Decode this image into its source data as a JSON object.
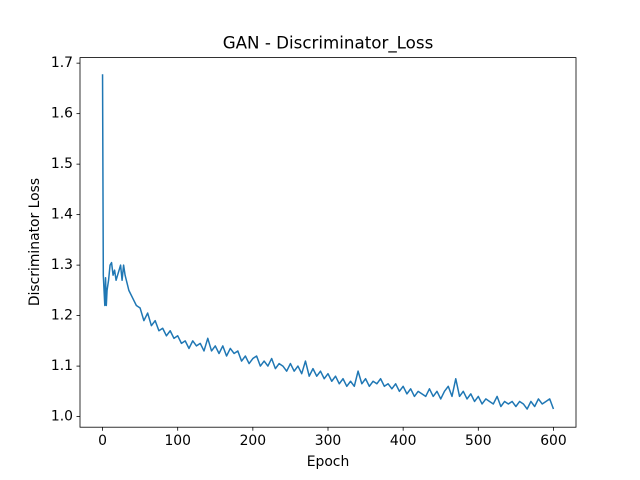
{
  "chart_data": {
    "type": "line",
    "title": "GAN - Discriminator_Loss",
    "x_label": "Epoch",
    "y_label": "Discriminator Loss",
    "series": [
      {
        "name": "Discriminator Loss",
        "color": "#1f77b4",
        "x": [
          0,
          1,
          2,
          3,
          4,
          5,
          6,
          8,
          10,
          12,
          14,
          16,
          18,
          20,
          22,
          24,
          26,
          28,
          30,
          35,
          40,
          45,
          50,
          55,
          60,
          65,
          70,
          75,
          80,
          85,
          90,
          95,
          100,
          105,
          110,
          115,
          120,
          125,
          130,
          135,
          140,
          145,
          150,
          155,
          160,
          165,
          170,
          175,
          180,
          185,
          190,
          195,
          200,
          205,
          210,
          215,
          220,
          225,
          230,
          235,
          240,
          245,
          250,
          255,
          260,
          265,
          270,
          275,
          280,
          285,
          290,
          295,
          300,
          305,
          310,
          315,
          320,
          325,
          330,
          335,
          340,
          345,
          350,
          355,
          360,
          365,
          370,
          375,
          380,
          385,
          390,
          395,
          400,
          405,
          410,
          415,
          420,
          425,
          430,
          435,
          440,
          445,
          450,
          455,
          460,
          465,
          470,
          475,
          480,
          485,
          490,
          495,
          500,
          505,
          510,
          515,
          520,
          525,
          530,
          535,
          540,
          545,
          550,
          555,
          560,
          565,
          570,
          575,
          580,
          585,
          590,
          595,
          600
        ],
        "values": [
          1.678,
          1.28,
          1.25,
          1.22,
          1.275,
          1.22,
          1.25,
          1.27,
          1.3,
          1.305,
          1.28,
          1.29,
          1.27,
          1.28,
          1.29,
          1.3,
          1.27,
          1.3,
          1.28,
          1.25,
          1.235,
          1.22,
          1.215,
          1.19,
          1.205,
          1.18,
          1.19,
          1.17,
          1.175,
          1.16,
          1.17,
          1.155,
          1.16,
          1.145,
          1.15,
          1.135,
          1.15,
          1.14,
          1.145,
          1.13,
          1.155,
          1.13,
          1.14,
          1.125,
          1.14,
          1.12,
          1.135,
          1.125,
          1.13,
          1.11,
          1.12,
          1.105,
          1.115,
          1.12,
          1.1,
          1.11,
          1.1,
          1.115,
          1.095,
          1.105,
          1.1,
          1.09,
          1.105,
          1.09,
          1.1,
          1.085,
          1.11,
          1.08,
          1.095,
          1.08,
          1.09,
          1.075,
          1.085,
          1.07,
          1.08,
          1.065,
          1.075,
          1.06,
          1.07,
          1.06,
          1.09,
          1.065,
          1.075,
          1.06,
          1.07,
          1.065,
          1.075,
          1.06,
          1.065,
          1.055,
          1.065,
          1.05,
          1.06,
          1.045,
          1.055,
          1.04,
          1.05,
          1.045,
          1.04,
          1.055,
          1.04,
          1.05,
          1.035,
          1.05,
          1.06,
          1.04,
          1.075,
          1.04,
          1.05,
          1.035,
          1.045,
          1.03,
          1.04,
          1.025,
          1.035,
          1.03,
          1.025,
          1.04,
          1.02,
          1.03,
          1.025,
          1.03,
          1.02,
          1.03,
          1.025,
          1.015,
          1.03,
          1.02,
          1.035,
          1.025,
          1.03,
          1.035,
          1.015
        ]
      }
    ],
    "xlim": [
      -30,
      630
    ],
    "ylim": [
      0.979,
      1.711
    ],
    "xticks": [
      0,
      100,
      200,
      300,
      400,
      500,
      600
    ],
    "yticks": [
      {
        "value": 1,
        "label": "1.0"
      },
      1.1,
      1.2,
      1.3,
      1.4,
      1.5,
      1.6,
      1.7
    ]
  }
}
